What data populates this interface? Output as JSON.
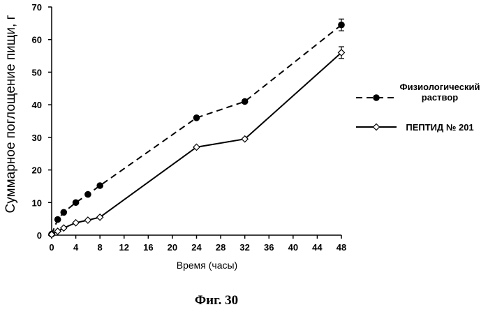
{
  "chart_data": {
    "type": "line",
    "xlabel": "Время (часы)",
    "ylabel": "Суммарное поглощение пищи, г",
    "xlim": [
      0,
      48
    ],
    "ylim": [
      0,
      70
    ],
    "xticks": [
      0,
      4,
      8,
      12,
      16,
      20,
      24,
      28,
      32,
      36,
      40,
      44,
      48
    ],
    "yticks": [
      0,
      10,
      20,
      30,
      40,
      50,
      60,
      70
    ],
    "grid": false,
    "legend_position": "right",
    "series": [
      {
        "name": "Физиологический раствор",
        "legend_lines": [
          "Физиологический",
          "раствор"
        ],
        "style": "dashed",
        "marker": "filled-circle",
        "x": [
          0,
          1,
          2,
          4,
          6,
          8,
          24,
          32,
          48
        ],
        "y": [
          0.3,
          4.8,
          7.0,
          10.0,
          12.5,
          15.2,
          36.0,
          41.0,
          64.5
        ],
        "error": [
          0,
          0,
          0,
          0,
          0,
          0,
          0,
          0,
          1.8
        ]
      },
      {
        "name": "ПЕПТИД № 201",
        "legend_lines": [
          "ПЕПТИД №  201"
        ],
        "style": "solid",
        "marker": "open-diamond",
        "x": [
          0,
          1,
          2,
          4,
          6,
          8,
          24,
          32,
          48
        ],
        "y": [
          0.2,
          1.2,
          2.2,
          3.8,
          4.6,
          5.5,
          27.0,
          29.5,
          56.0
        ],
        "error": [
          0,
          0,
          0,
          0,
          0,
          0,
          0,
          0,
          1.8
        ]
      }
    ]
  },
  "figure": {
    "caption": "Фиг. 30"
  }
}
